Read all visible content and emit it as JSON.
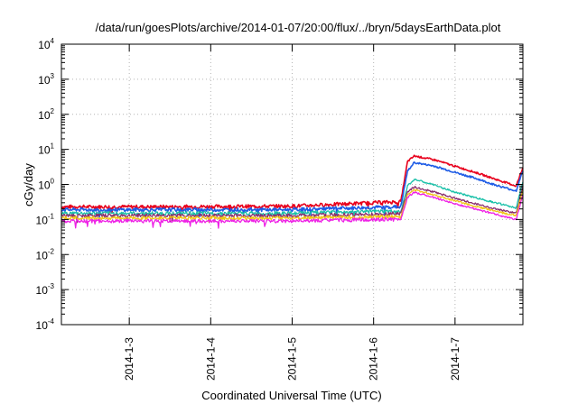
{
  "chart_data": {
    "type": "line",
    "title": "/data/run/goesPlots/archive/2014-01-07/20:00/flux/../bryn/5daysEarthData.plot",
    "xlabel": "Coordinated Universal Time (UTC)",
    "ylabel": "cGy/day",
    "yscale": "log",
    "ylim": [
      0.0001,
      10000
    ],
    "yticks": [
      {
        "base": "10",
        "exp": "-4",
        "value": 0.0001
      },
      {
        "base": "10",
        "exp": "-3",
        "value": 0.001
      },
      {
        "base": "10",
        "exp": "-2",
        "value": 0.01
      },
      {
        "base": "10",
        "exp": "-1",
        "value": 0.1
      },
      {
        "base": "10",
        "exp": "0",
        "value": 1
      },
      {
        "base": "10",
        "exp": "1",
        "value": 10
      },
      {
        "base": "10",
        "exp": "2",
        "value": 100
      },
      {
        "base": "10",
        "exp": "3",
        "value": 1000
      },
      {
        "base": "10",
        "exp": "4",
        "value": 10000
      }
    ],
    "xlim": [
      "2014-01-02T04:00",
      "2014-01-07T20:00"
    ],
    "xticks": [
      "2014-1-3",
      "2014-1-4",
      "2014-1-5",
      "2014-1-6",
      "2014-1-7"
    ],
    "grid": true,
    "legend": "none",
    "series": [
      {
        "color": "#e8001c",
        "points": [
          [
            "2014-01-02T04:00",
            0.23
          ],
          [
            "2014-01-03T12:00",
            0.23
          ],
          [
            "2014-01-05T00:00",
            0.24
          ],
          [
            "2014-01-06T00:00",
            0.3
          ],
          [
            "2014-01-06T08:00",
            0.32
          ],
          [
            "2014-01-06T10:00",
            4.5
          ],
          [
            "2014-01-06T12:00",
            6.5
          ],
          [
            "2014-01-06T18:00",
            5.0
          ],
          [
            "2014-01-07T00:00",
            3.3
          ],
          [
            "2014-01-07T06:00",
            2.2
          ],
          [
            "2014-01-07T12:00",
            1.4
          ],
          [
            "2014-01-07T18:00",
            0.9
          ],
          [
            "2014-01-07T20:00",
            3.0
          ]
        ]
      },
      {
        "color": "#1e5ce6",
        "points": [
          [
            "2014-01-02T04:00",
            0.19
          ],
          [
            "2014-01-03T12:00",
            0.19
          ],
          [
            "2014-01-05T00:00",
            0.19
          ],
          [
            "2014-01-06T00:00",
            0.22
          ],
          [
            "2014-01-06T08:00",
            0.23
          ],
          [
            "2014-01-06T10:00",
            2.4
          ],
          [
            "2014-01-06T12:00",
            4.2
          ],
          [
            "2014-01-06T18:00",
            3.3
          ],
          [
            "2014-01-07T00:00",
            2.2
          ],
          [
            "2014-01-07T06:00",
            1.5
          ],
          [
            "2014-01-07T12:00",
            0.95
          ],
          [
            "2014-01-07T18:00",
            0.65
          ],
          [
            "2014-01-07T20:00",
            2.5
          ]
        ]
      },
      {
        "color": "#18c0a8",
        "points": [
          [
            "2014-01-02T04:00",
            0.15
          ],
          [
            "2014-01-03T12:00",
            0.15
          ],
          [
            "2014-01-05T00:00",
            0.15
          ],
          [
            "2014-01-06T00:00",
            0.17
          ],
          [
            "2014-01-06T08:00",
            0.17
          ],
          [
            "2014-01-06T10:00",
            0.9
          ],
          [
            "2014-01-06T12:00",
            1.4
          ],
          [
            "2014-01-06T18:00",
            0.95
          ],
          [
            "2014-01-07T00:00",
            0.6
          ],
          [
            "2014-01-07T06:00",
            0.42
          ],
          [
            "2014-01-07T12:00",
            0.3
          ],
          [
            "2014-01-07T18:00",
            0.21
          ],
          [
            "2014-01-07T20:00",
            1.2
          ]
        ]
      },
      {
        "color": "#8a2d6e",
        "points": [
          [
            "2014-01-02T04:00",
            0.13
          ],
          [
            "2014-01-03T12:00",
            0.13
          ],
          [
            "2014-01-05T00:00",
            0.13
          ],
          [
            "2014-01-06T00:00",
            0.14
          ],
          [
            "2014-01-06T08:00",
            0.15
          ],
          [
            "2014-01-06T10:00",
            0.6
          ],
          [
            "2014-01-06T12:00",
            0.85
          ],
          [
            "2014-01-06T18:00",
            0.6
          ],
          [
            "2014-01-07T00:00",
            0.4
          ],
          [
            "2014-01-07T06:00",
            0.28
          ],
          [
            "2014-01-07T12:00",
            0.2
          ],
          [
            "2014-01-07T18:00",
            0.15
          ],
          [
            "2014-01-07T20:00",
            0.9
          ]
        ]
      },
      {
        "color": "#f0c414",
        "points": [
          [
            "2014-01-02T04:00",
            0.11
          ],
          [
            "2014-01-03T12:00",
            0.11
          ],
          [
            "2014-01-05T00:00",
            0.11
          ],
          [
            "2014-01-06T00:00",
            0.12
          ],
          [
            "2014-01-06T08:00",
            0.12
          ],
          [
            "2014-01-06T10:00",
            0.5
          ],
          [
            "2014-01-06T12:00",
            0.7
          ],
          [
            "2014-01-06T18:00",
            0.5
          ],
          [
            "2014-01-07T00:00",
            0.34
          ],
          [
            "2014-01-07T06:00",
            0.24
          ],
          [
            "2014-01-07T12:00",
            0.17
          ],
          [
            "2014-01-07T18:00",
            0.13
          ],
          [
            "2014-01-07T20:00",
            0.7
          ]
        ]
      },
      {
        "color": "#ee22e6",
        "points": [
          [
            "2014-01-02T04:00",
            0.09
          ],
          [
            "2014-01-03T12:00",
            0.09
          ],
          [
            "2014-01-05T00:00",
            0.09
          ],
          [
            "2014-01-06T00:00",
            0.1
          ],
          [
            "2014-01-06T08:00",
            0.1
          ],
          [
            "2014-01-06T10:00",
            0.42
          ],
          [
            "2014-01-06T12:00",
            0.6
          ],
          [
            "2014-01-06T18:00",
            0.42
          ],
          [
            "2014-01-07T00:00",
            0.28
          ],
          [
            "2014-01-07T06:00",
            0.2
          ],
          [
            "2014-01-07T12:00",
            0.14
          ],
          [
            "2014-01-07T18:00",
            0.1
          ],
          [
            "2014-01-07T20:00",
            0.5
          ]
        ]
      }
    ]
  }
}
